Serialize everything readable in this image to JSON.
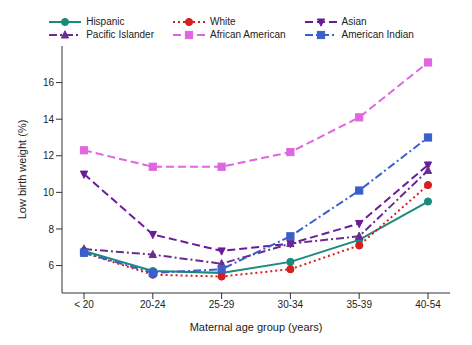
{
  "chart_data": {
    "type": "line",
    "x_label": "Maternal age group (years)",
    "y_label": "Low birth weight (%)",
    "categories": [
      "< 20",
      "20-24",
      "25-29",
      "30-34",
      "35-39",
      "40-54"
    ],
    "ylim": [
      4.5,
      18
    ],
    "yticks": [
      6,
      8,
      10,
      12,
      14,
      16
    ],
    "grid": false,
    "legend": "top",
    "series": [
      {
        "name": "Hispanic",
        "color": "#1a8a7a",
        "marker": "circle",
        "line_style": "solid",
        "values": [
          6.8,
          5.7,
          5.6,
          6.2,
          7.4,
          9.5
        ]
      },
      {
        "name": "White",
        "color": "#d62020",
        "marker": "circle",
        "line_style": "dotted",
        "values": [
          6.7,
          5.5,
          5.4,
          5.8,
          7.1,
          10.4
        ]
      },
      {
        "name": "Asian",
        "color": "#6a1b9a",
        "marker": "triangle-down",
        "line_style": "dashed",
        "values": [
          11.0,
          7.7,
          6.8,
          7.2,
          8.3,
          11.5
        ]
      },
      {
        "name": "Pacific Islander",
        "color": "#6a2c91",
        "marker": "triangle",
        "line_style": "dashdot",
        "values": [
          6.9,
          6.6,
          6.1,
          7.2,
          7.6,
          11.2
        ]
      },
      {
        "name": "African American",
        "color": "#e066e0",
        "marker": "square",
        "line_style": "dashed",
        "values": [
          12.3,
          11.4,
          11.4,
          12.2,
          14.1,
          17.1
        ]
      },
      {
        "name": "American Indian",
        "color": "#3a5fcd",
        "marker": "square",
        "line_style": "dashdot",
        "values": [
          6.7,
          5.6,
          5.8,
          7.6,
          10.1,
          13.0
        ]
      }
    ]
  }
}
